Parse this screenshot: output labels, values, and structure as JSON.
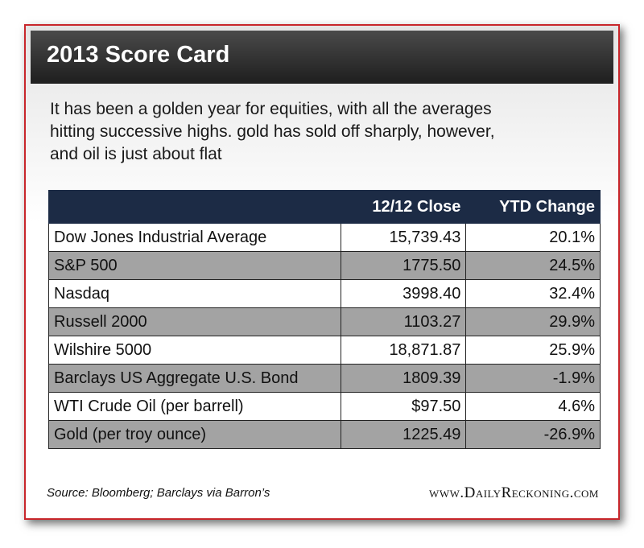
{
  "header": {
    "title": "2013 Score Card"
  },
  "intro": "It has been a golden year for equities, with all the averages hitting successive highs. gold has sold off sharply, however, and oil is just about flat",
  "table": {
    "columns": [
      "12/12 Close",
      "YTD Change"
    ],
    "rows": [
      [
        "Dow Jones Industrial Average",
        "15,739.43",
        "20.1%"
      ],
      [
        "S&P 500",
        "1775.50",
        "24.5%"
      ],
      [
        "Nasdaq",
        "3998.40",
        "32.4%"
      ],
      [
        "Russell 2000",
        "1103.27",
        "29.9%"
      ],
      [
        "Wilshire 5000",
        "18,871.87",
        "25.9%"
      ],
      [
        "Barclays US Aggregate U.S. Bond",
        "1809.39",
        "-1.9%"
      ],
      [
        "WTI Crude Oil (per barrell)",
        "$97.50",
        "4.6%"
      ],
      [
        "Gold (per troy ounce)",
        "1225.49",
        "-26.9%"
      ]
    ]
  },
  "footer": {
    "source": "Source: Bloomberg; Barclays via Barron’s",
    "website": "www.DailyReckoning.com"
  }
}
